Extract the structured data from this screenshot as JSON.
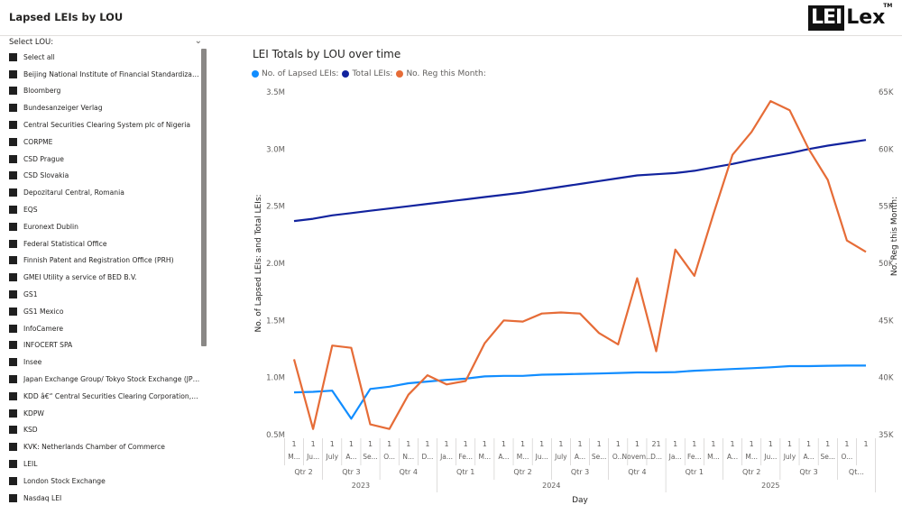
{
  "header": {
    "title": "Lapsed LEIs by LOU",
    "logo_box": "LEI",
    "logo_rest": "Lex",
    "logo_tm": "TM"
  },
  "slicer": {
    "label": "Select LOU:",
    "items": [
      "Select all",
      "Beijing National Institute of Financial Standardizatio...",
      "Bloomberg",
      "Bundesanzeiger Verlag",
      "Central Securities Clearing System plc of Nigeria",
      "CORPME",
      "CSD Prague",
      "CSD Slovakia",
      "Depozitarul Central, Romania",
      "EQS",
      "Euronext Dublin",
      "Federal Statistical Office",
      "Finnish Patent and Registration Office (PRH)",
      "GMEI Utility a service of BED B.V.",
      "GS1",
      "GS1 Mexico",
      "InfoCamere",
      "INFOCERT SPA",
      "Insee",
      "Japan Exchange Group/ Tokyo Stock Exchange (JPX/...",
      "KDD â€“ Central Securities Clearing Corporation, LLC",
      "KDPW",
      "KSD",
      "KVK: Netherlands Chamber of Commerce",
      "LEIL",
      "London Stock Exchange",
      "Nasdaq LEI"
    ]
  },
  "chart": {
    "title": "LEI Totals by LOU over time",
    "legend": [
      {
        "label": "No. of Lapsed LEIs:",
        "color": "#118dff"
      },
      {
        "label": "Total LEIs:",
        "color": "#12239e"
      },
      {
        "label": "No. Reg this Month:",
        "color": "#e66c37"
      }
    ]
  },
  "chart_data": {
    "type": "line",
    "title": "LEI Totals by LOU over time",
    "xlabel": "Day",
    "ylabel": "No. of Lapsed LEIs: and Total LEIs:",
    "ylabel_right": "No. Reg this Month:",
    "ylim": [
      500000,
      3500000
    ],
    "ylim_right": [
      35000,
      65000
    ],
    "yticks": [
      "3.5M",
      "3.0M",
      "2.5M",
      "2.0M",
      "1.5M",
      "1.0M",
      "0.5M"
    ],
    "yticks_right": [
      "65K",
      "60K",
      "55K",
      "50K",
      "45K",
      "40K",
      "35K"
    ],
    "x_day_labels": [
      "1",
      "1",
      "1",
      "1",
      "1",
      "1",
      "1",
      "1",
      "1",
      "1",
      "1",
      "1",
      "1",
      "1",
      "1",
      "1",
      "1",
      "1",
      "1",
      "21",
      "1",
      "1",
      "1",
      "1",
      "1",
      "1",
      "1",
      "1",
      "1",
      "1",
      "1"
    ],
    "x_month_labels": [
      "M...",
      "Ju...",
      "July",
      "A...",
      "Se...",
      "O...",
      "N...",
      "D...",
      "Ja...",
      "Fe...",
      "M...",
      "A...",
      "M...",
      "Ju...",
      "July",
      "A...",
      "Se...",
      "O...",
      "Novem...",
      "D...",
      "Ja...",
      "Fe...",
      "M...",
      "A...",
      "M...",
      "Ju...",
      "July",
      "A...",
      "Se...",
      "O...",
      ""
    ],
    "quarters": [
      {
        "label": "Qtr 2",
        "year": "2023"
      },
      {
        "label": "Qtr 3",
        "year": "2023"
      },
      {
        "label": "Qtr 4",
        "year": "2023"
      },
      {
        "label": "Qtr 1",
        "year": "2024"
      },
      {
        "label": "Qtr 2",
        "year": "2024"
      },
      {
        "label": "Qtr 3",
        "year": "2024"
      },
      {
        "label": "Qtr 4",
        "year": "2024"
      },
      {
        "label": "Qtr 1",
        "year": "2025"
      },
      {
        "label": "Qtr 2",
        "year": "2025"
      },
      {
        "label": "Qtr 3",
        "year": "2025"
      },
      {
        "label": "Qt...",
        "year": "2025"
      }
    ],
    "years": [
      "2023",
      "2024",
      "2025"
    ],
    "series": [
      {
        "name": "No. of Lapsed LEIs:",
        "axis": "left",
        "color": "#118dff",
        "values": [
          870000,
          875000,
          885000,
          640000,
          900000,
          920000,
          950000,
          965000,
          980000,
          990000,
          1010000,
          1015000,
          1015000,
          1025000,
          1028000,
          1032000,
          1035000,
          1040000,
          1045000,
          1045000,
          1048000,
          1060000,
          1067000,
          1075000,
          1082000,
          1090000,
          1100000,
          1100000,
          1103000,
          1105000,
          1105000
        ]
      },
      {
        "name": "Total LEIs:",
        "axis": "left",
        "color": "#12239e",
        "values": [
          2370000,
          2390000,
          2420000,
          2440000,
          2460000,
          2480000,
          2500000,
          2520000,
          2540000,
          2560000,
          2580000,
          2600000,
          2620000,
          2645000,
          2670000,
          2695000,
          2720000,
          2745000,
          2770000,
          2780000,
          2790000,
          2810000,
          2840000,
          2870000,
          2905000,
          2935000,
          2965000,
          3000000,
          3030000,
          3055000,
          3080000
        ]
      },
      {
        "name": "No. Reg this Month:",
        "axis": "right",
        "color": "#e66c37",
        "values": [
          41600,
          35500,
          42800,
          42600,
          35900,
          35500,
          38500,
          40200,
          39400,
          39700,
          43000,
          45000,
          44900,
          45600,
          45700,
          45600,
          43900,
          42900,
          48700,
          42300,
          51200,
          48900,
          54300,
          59500,
          61500,
          64200,
          63400,
          60000,
          57300,
          52000,
          51000
        ]
      }
    ]
  }
}
